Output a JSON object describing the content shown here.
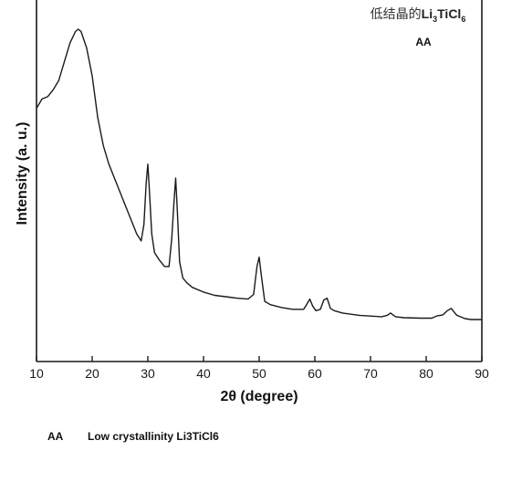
{
  "chart_data": {
    "type": "line",
    "xlabel": "2θ (degree)",
    "ylabel": "Intensity (a. u.)",
    "xlim": [
      10,
      90
    ],
    "ylim": [
      0,
      100
    ],
    "xticks": [
      10,
      20,
      30,
      40,
      50,
      60,
      70,
      80,
      90
    ],
    "y_tick_labels_shown": false,
    "grid": false,
    "annotation": {
      "cn_text": "低结晶的",
      "formula_a": "Li",
      "formula_a_sub": "3",
      "formula_b": "TiCl",
      "formula_b_sub": "6"
    },
    "series": [
      {
        "name": "AA",
        "color": "#1a1a1a",
        "x": [
          10,
          11,
          12,
          13,
          14,
          15,
          16,
          17,
          17.5,
          18,
          19,
          20,
          21,
          22,
          23,
          24,
          25,
          26,
          27,
          28,
          28.8,
          29.3,
          29.7,
          30.0,
          30.3,
          30.7,
          31.2,
          32,
          33,
          33.8,
          34.3,
          34.7,
          35.0,
          35.3,
          35.7,
          36.3,
          37,
          38,
          40,
          42,
          44,
          46,
          48,
          49,
          49.6,
          50.0,
          50.4,
          51,
          52,
          54,
          56,
          58,
          58.6,
          59.1,
          59.6,
          60.2,
          61,
          61.6,
          62.2,
          62.8,
          63.5,
          65,
          68,
          72,
          73,
          73.6,
          74.5,
          76,
          79,
          81,
          82,
          83,
          83.8,
          84.5,
          85.5,
          87,
          88,
          90
        ],
        "y": [
          58,
          60,
          60.5,
          62,
          64,
          68,
          72,
          74.5,
          75,
          74.5,
          71,
          65,
          56,
          50,
          46,
          43,
          40,
          37,
          34,
          31,
          29.5,
          33,
          42,
          46,
          40,
          31,
          27,
          25.5,
          24,
          24,
          30,
          38,
          43,
          36,
          25,
          21.5,
          20.5,
          19.5,
          18.5,
          17.8,
          17.5,
          17.2,
          17,
          18,
          24,
          26,
          22,
          16.5,
          15.8,
          15.2,
          14.8,
          14.8,
          16,
          17,
          15.5,
          14.5,
          14.8,
          16.8,
          17.2,
          15,
          14.5,
          14.0,
          13.5,
          13.2,
          13.5,
          14,
          13.2,
          13.0,
          12.9,
          12.9,
          13.4,
          13.6,
          14.5,
          15,
          13.5,
          12.8,
          12.6,
          12.6
        ]
      }
    ]
  },
  "caption": {
    "tag": "AA",
    "text": "Low crystallinity Li3TiCl6"
  }
}
